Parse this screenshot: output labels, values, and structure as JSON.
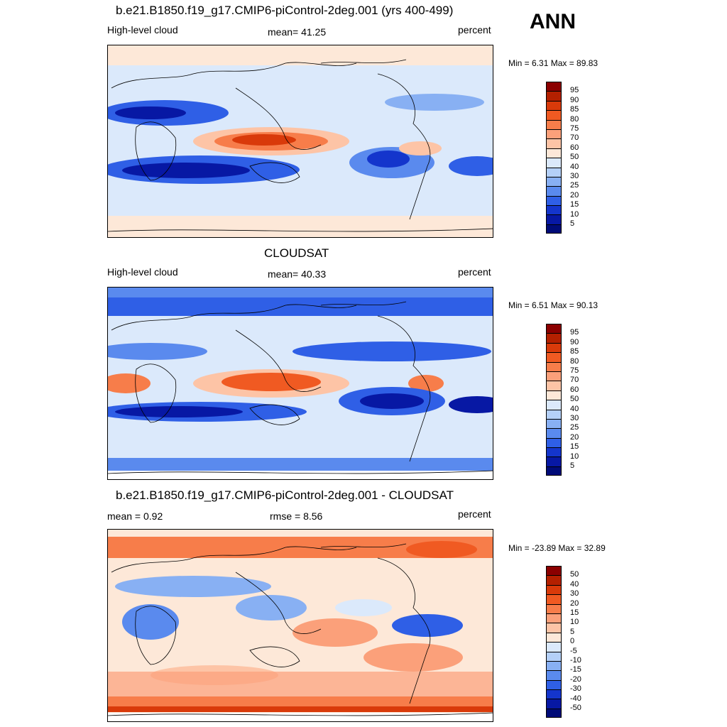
{
  "ann": "ANN",
  "panels": [
    {
      "title": "b.e21.B1850.f19_g17.CMIP6-piControl-2deg.001 (yrs 400-499)",
      "left": "High-level cloud",
      "center": "mean=  41.25",
      "right": "percent",
      "minmax": "Min =   6.31 Max =  89.83",
      "levels": [
        "95",
        "90",
        "85",
        "80",
        "75",
        "70",
        "60",
        "50",
        "40",
        "30",
        "25",
        "20",
        "15",
        "10",
        "5"
      ]
    },
    {
      "title": "CLOUDSAT",
      "left": "High-level cloud",
      "center": "mean=  40.33",
      "right": "percent",
      "minmax": "Min =   6.51 Max =  90.13",
      "levels": [
        "95",
        "90",
        "85",
        "80",
        "75",
        "70",
        "60",
        "50",
        "40",
        "30",
        "25",
        "20",
        "15",
        "10",
        "5"
      ]
    },
    {
      "title": "b.e21.B1850.f19_g17.CMIP6-piControl-2deg.001 - CLOUDSAT",
      "left": "mean =   0.92",
      "center": "rmse =   8.56",
      "right": "percent",
      "minmax": "Min = -23.89 Max =  32.89",
      "levels": [
        "50",
        "40",
        "30",
        "20",
        "15",
        "10",
        "5",
        "0",
        "-5",
        "-10",
        "-15",
        "-20",
        "-30",
        "-40",
        "-50"
      ]
    }
  ],
  "colors": {
    "abs_scale": [
      "#8b0000",
      "#b42000",
      "#d93a0a",
      "#f05a22",
      "#f77d4a",
      "#fba07a",
      "#fdc4a6",
      "#fde8d8",
      "#dbe9fb",
      "#b4d0f8",
      "#88b0f3",
      "#5a8aee",
      "#2f5fe6",
      "#1435cc",
      "#0718a4",
      "#000b78"
    ],
    "diff_scale": [
      "#8b0000",
      "#b42000",
      "#d93a0a",
      "#f05a22",
      "#f77d4a",
      "#fba07a",
      "#fdc4a6",
      "#fde8d8",
      "#dbe9fb",
      "#b4d0f8",
      "#88b0f3",
      "#5a8aee",
      "#2f5fe6",
      "#1435cc",
      "#0718a4",
      "#000b78"
    ]
  }
}
